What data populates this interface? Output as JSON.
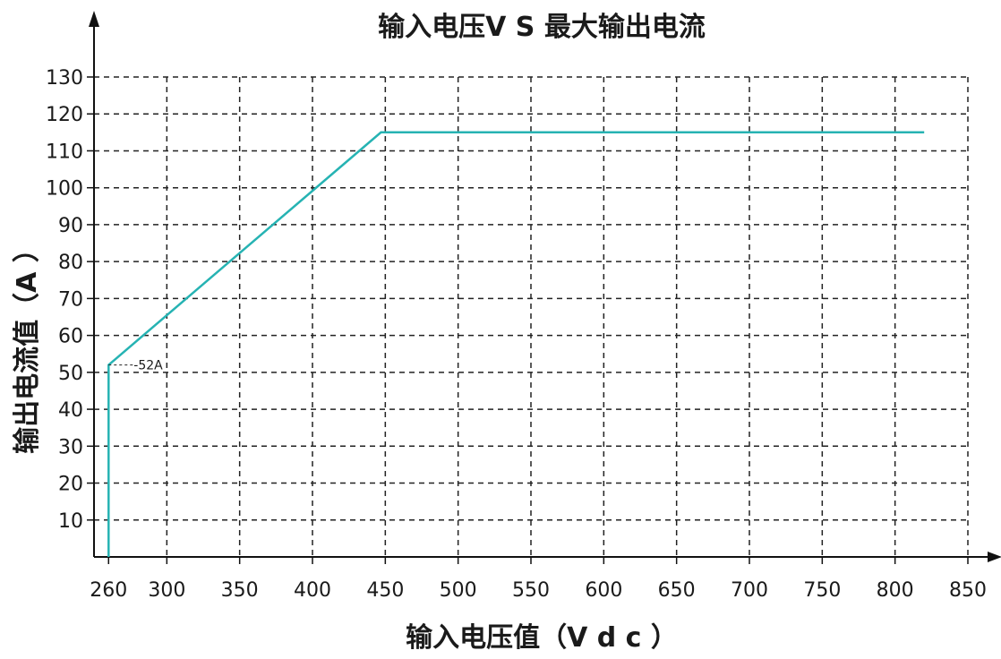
{
  "chart_data": {
    "type": "line",
    "title": "输入电压V S 最大输出电流",
    "xlabel": "输入电压值（V d c ）",
    "ylabel": "输出电流值（A ）",
    "x_ticks": [
      260,
      300,
      350,
      400,
      450,
      500,
      550,
      600,
      650,
      700,
      750,
      800,
      850
    ],
    "y_ticks": [
      10,
      20,
      30,
      40,
      50,
      60,
      70,
      80,
      90,
      100,
      110,
      120,
      130
    ],
    "xlim": [
      250,
      850
    ],
    "ylim": [
      0,
      130
    ],
    "grid": true,
    "series": [
      {
        "x": [
          260,
          260,
          447,
          820
        ],
        "y": [
          0,
          52,
          115,
          115
        ]
      }
    ],
    "annotations": [
      {
        "text": "-52A",
        "x": 260,
        "y": 52
      }
    ],
    "colors": {
      "line": "#26b3b3",
      "grid": "#222222",
      "axis": "#111111"
    }
  }
}
